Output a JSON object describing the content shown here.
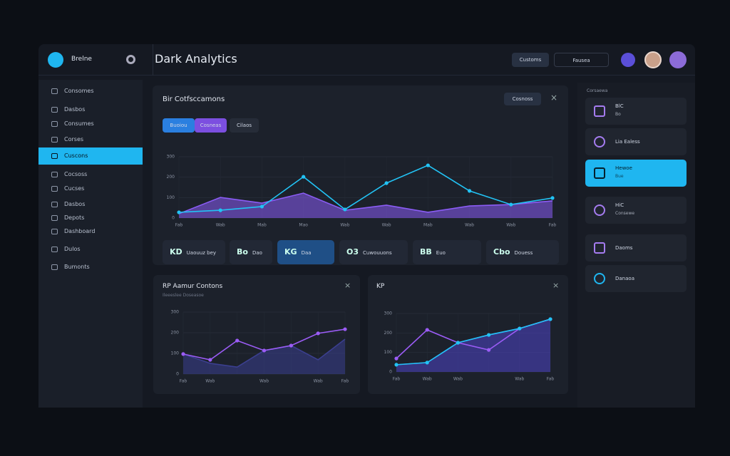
{
  "header": {
    "logo_text": "Brelne",
    "title": "Dark Analytics",
    "button": "Customs",
    "search": "Fausea"
  },
  "sidebar": {
    "items": [
      "Consomes",
      "Dasbos",
      "Consumes",
      "Corses",
      "Cuscons",
      "Cocsoss",
      "Cucses",
      "Dasbos",
      "Depots",
      "Dashboard",
      "Dulos",
      "Bumonts"
    ],
    "active": 4
  },
  "main": {
    "title": "Bir Cotfsccamons",
    "tag": "Cosnoss",
    "tabs": [
      "Buoiou",
      "Cosneas",
      "Cilaos"
    ],
    "chart": {
      "type": "line",
      "ylim": [
        0,
        300
      ],
      "yticks": [
        0,
        100,
        200,
        300
      ],
      "grid": true,
      "categories": [
        "Fab",
        "Wab",
        "Mab",
        "Mao",
        "Wab",
        "Wab",
        "Mab",
        "Wab",
        "Wab",
        "Fab"
      ],
      "series": [
        {
          "color": "#8b5cf6",
          "area": true,
          "values": [
            21,
            101,
            73,
            122,
            38,
            63,
            28,
            59,
            66,
            84
          ]
        },
        {
          "color": "#22c3f5",
          "area": false,
          "values": [
            28,
            38,
            56,
            202,
            42,
            171,
            258,
            133,
            66,
            98
          ]
        }
      ]
    },
    "kpis": [
      {
        "icon": "KD",
        "label": "Uaouuz bey"
      },
      {
        "icon": "Bo",
        "label": "Dao"
      },
      {
        "icon": "KG",
        "label": "Daa"
      },
      {
        "icon": "O3",
        "label": "Cuwouuons"
      },
      {
        "icon": "BB",
        "label": "Euo"
      },
      {
        "icon": "Cbo",
        "label": "Douess"
      }
    ]
  },
  "card_left": {
    "title": "RP Aamur Contons",
    "subtitle": "Ileeeslee Doseasoe",
    "chart": {
      "type": "line",
      "ylim": [
        0,
        300
      ],
      "yticks": [
        0,
        100,
        200,
        300
      ],
      "grid": true,
      "categories": [
        "Fab",
        "Wab",
        null,
        "Wab",
        null,
        "Wab",
        "Fab"
      ],
      "series": [
        {
          "color": "#3b3f8f",
          "area": true,
          "values": [
            97,
            52,
            34,
            114,
            138,
            69,
            169
          ]
        },
        {
          "color": "#9b5cf6",
          "area": false,
          "values": [
            97,
            69,
            162,
            114,
            138,
            197,
            217
          ]
        }
      ]
    }
  },
  "card_right": {
    "title": "KP",
    "chart": {
      "type": "line",
      "ylim": [
        0,
        300
      ],
      "yticks": [
        0,
        100,
        200,
        300
      ],
      "grid": true,
      "categories": [
        "Fab",
        "Wab",
        "Wab",
        null,
        "Wab",
        "Fab"
      ],
      "series": [
        {
          "color": "#4f46c8",
          "area": true,
          "values": [
            37,
            48,
            150,
            190,
            223,
            271
          ]
        },
        {
          "color": "#9b5cf6",
          "area": false,
          "values": [
            69,
            216,
            150,
            113,
            223,
            271
          ]
        },
        {
          "color": "#22c3f5",
          "area": false,
          "values": [
            37,
            48,
            150,
            190,
            223,
            271
          ]
        }
      ]
    }
  },
  "right_panel": {
    "heading": "Corsaewa",
    "active": 2,
    "items": [
      {
        "title": "BlC",
        "sub": "Bo"
      },
      {
        "title": "Lia Ealess"
      },
      {
        "title": "Hewoe",
        "sub": "Bue"
      },
      {
        "title": "HiC",
        "sub": "Consewe"
      },
      {
        "title": "Daoms"
      },
      {
        "title": "Danaoa"
      }
    ]
  }
}
